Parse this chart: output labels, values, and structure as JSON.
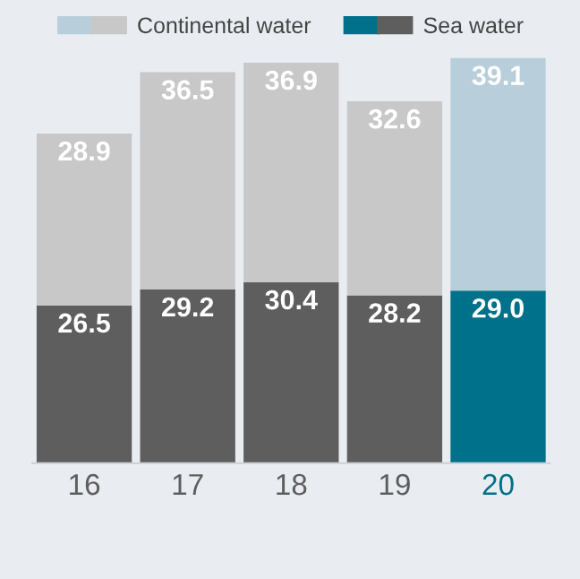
{
  "chart_data": {
    "type": "bar",
    "stacked": true,
    "legend": "top",
    "categories": [
      "16",
      "17",
      "18",
      "19",
      "20"
    ],
    "series": [
      {
        "name": "Sea water",
        "colors": [
          "#5e5e5e",
          "#5e5e5e",
          "#5e5e5e",
          "#5e5e5e",
          "#00718a"
        ],
        "values": [
          26.5,
          29.2,
          30.4,
          28.2,
          29.0
        ],
        "value_labels": [
          "26.5",
          "29.2",
          "30.4",
          "28.2",
          "29.0"
        ]
      },
      {
        "name": "Continental water",
        "colors": [
          "#c8c8c8",
          "#c8c8c8",
          "#c8c8c8",
          "#c8c8c8",
          "#b8cfdb"
        ],
        "values": [
          28.9,
          36.5,
          36.9,
          32.6,
          39.1
        ],
        "value_labels": [
          "28.9",
          "36.5",
          "36.9",
          "32.6",
          "39.1"
        ]
      }
    ]
  }
}
